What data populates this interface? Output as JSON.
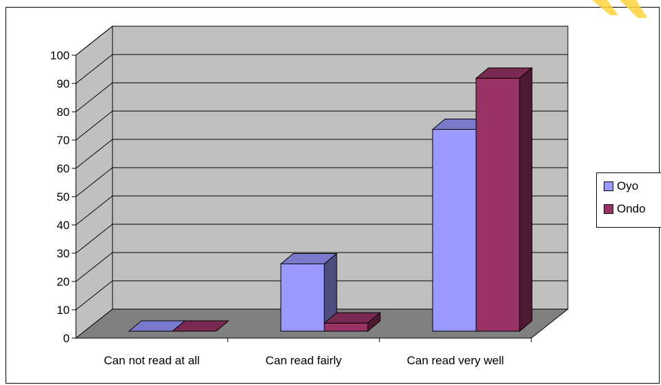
{
  "chart_data": {
    "type": "bar",
    "categories": [
      "Can not read at all",
      "Can read fairly",
      "Can read very well"
    ],
    "series": [
      {
        "name": "Oyo",
        "values": [
          0,
          25,
          75
        ],
        "color": "#9999ff",
        "side_color": "#4d4d80",
        "top_color": "#7a7acc"
      },
      {
        "name": "Ondo",
        "values": [
          0,
          3,
          94
        ],
        "color": "#993366",
        "side_color": "#4d1933",
        "top_color": "#7a2952"
      }
    ],
    "y_ticks": [
      "0",
      "10",
      "20",
      "30",
      "40",
      "50",
      "60",
      "70",
      "80",
      "90",
      "100"
    ],
    "ylim": [
      0,
      100
    ],
    "grid": true,
    "legend_position": "right",
    "wall_color": "#c0c0c0",
    "floor_color": "#808080",
    "title": "",
    "xlabel": "",
    "ylabel": ""
  }
}
